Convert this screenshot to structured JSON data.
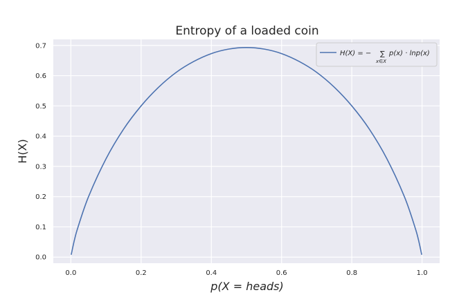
{
  "chart_data": {
    "type": "line",
    "title": "Entropy of a loaded coin",
    "xlabel": "p(X = heads)",
    "ylabel": "H(X)",
    "xlim": [
      -0.05,
      1.05
    ],
    "ylim": [
      -0.02,
      0.72
    ],
    "xticks": [
      0.0,
      0.2,
      0.4,
      0.6,
      0.8,
      1.0
    ],
    "xtick_labels": [
      "0.0",
      "0.2",
      "0.4",
      "0.6",
      "0.8",
      "1.0"
    ],
    "yticks": [
      0.0,
      0.1,
      0.2,
      0.3,
      0.4,
      0.5,
      0.6,
      0.7
    ],
    "ytick_labels": [
      "0.0",
      "0.1",
      "0.2",
      "0.3",
      "0.4",
      "0.5",
      "0.6",
      "0.7"
    ],
    "grid": true,
    "legend_position": "top-right",
    "legend": {
      "lhs": "H(X) = −",
      "sum": "∑",
      "sub": "x∈X",
      "rhs": "p(x) · lnp(x)"
    },
    "series": [
      {
        "color": "#4c72b0",
        "x": [
          0.001,
          0.01,
          0.02,
          0.05,
          0.1,
          0.15,
          0.2,
          0.25,
          0.3,
          0.35,
          0.4,
          0.45,
          0.5,
          0.55,
          0.6,
          0.65,
          0.7,
          0.75,
          0.8,
          0.85,
          0.9,
          0.95,
          0.98,
          0.99,
          0.999
        ],
        "y": [
          0.0079,
          0.056,
          0.098,
          0.199,
          0.325,
          0.423,
          0.5,
          0.562,
          0.611,
          0.647,
          0.673,
          0.688,
          0.693,
          0.688,
          0.673,
          0.647,
          0.611,
          0.562,
          0.5,
          0.423,
          0.325,
          0.199,
          0.098,
          0.056,
          0.0079
        ]
      }
    ]
  }
}
